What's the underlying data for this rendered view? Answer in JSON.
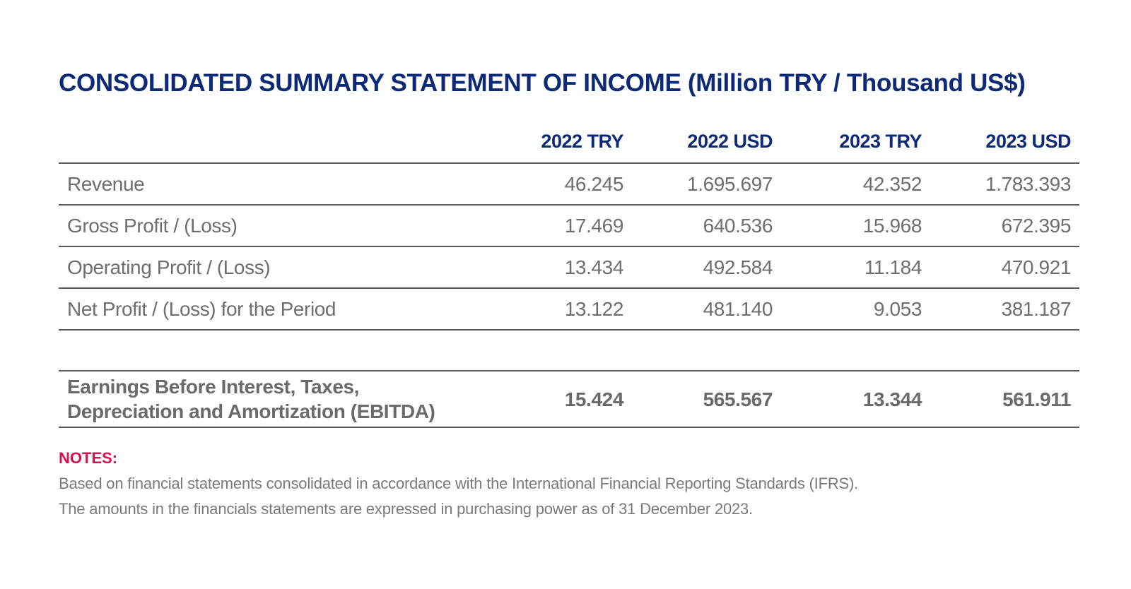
{
  "title": "CONSOLIDATED SUMMARY STATEMENT OF INCOME (Million TRY / Thousand US$)",
  "columns": [
    "2022 TRY",
    "2022 USD",
    "2023 TRY",
    "2023 USD"
  ],
  "rows": [
    {
      "label": "Revenue",
      "values": [
        "46.245",
        "1.695.697",
        "42.352",
        "1.783.393"
      ]
    },
    {
      "label": "Gross Profit / (Loss)",
      "values": [
        "17.469",
        "640.536",
        "15.968",
        "672.395"
      ]
    },
    {
      "label": "Operating Profit / (Loss)",
      "values": [
        "13.434",
        "492.584",
        "11.184",
        "470.921"
      ]
    },
    {
      "label": "Net Profit / (Loss) for the Period",
      "values": [
        "13.122",
        "481.140",
        "9.053",
        "381.187"
      ]
    }
  ],
  "ebitda": {
    "label_line1": "Earnings Before Interest, Taxes,",
    "label_line2": "Depreciation and Amortization (EBITDA)",
    "values": [
      "15.424",
      "565.567",
      "13.344",
      "561.911"
    ]
  },
  "notes": {
    "heading": "NOTES:",
    "lines": [
      "Based on financial statements consolidated in accordance with the International Financial Reporting Standards (IFRS).",
      "The amounts in the financials statements are expressed in purchasing power as of 31 December 2023."
    ]
  },
  "colors": {
    "title": "#0c2a78",
    "notes_heading": "#d8114f",
    "body_text": "#6e6e6e"
  }
}
